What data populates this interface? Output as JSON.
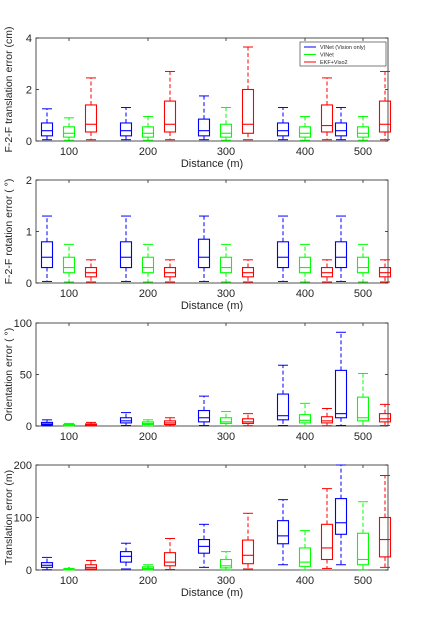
{
  "colors": {
    "vinet_vision": "#0000ff",
    "vinet": "#00ff00",
    "ekf": "#ff0000",
    "axis": "#262626"
  },
  "legend": {
    "placement": "top-right",
    "entries": [
      "VINet (Vision only)",
      "VINet",
      "EKF+Viso2"
    ]
  },
  "chart_data": [
    {
      "type": "box",
      "ylabel": "F-2-F translation error (cm)",
      "xlabel": "Distance (m)",
      "categories": [
        "100",
        "200",
        "300",
        "400",
        "500"
      ],
      "ylim": [
        0,
        4
      ],
      "yticks": [
        0,
        2,
        4
      ],
      "has_legend": true,
      "series": [
        {
          "name": "VINet (Vision only)",
          "boxes": [
            {
              "whisker_low": 0.05,
              "q1": 0.2,
              "median": 0.4,
              "q3": 0.7,
              "whisker_high": 1.25
            },
            {
              "whisker_low": 0.05,
              "q1": 0.2,
              "median": 0.4,
              "q3": 0.7,
              "whisker_high": 1.3
            },
            {
              "whisker_low": 0.05,
              "q1": 0.2,
              "median": 0.4,
              "q3": 0.85,
              "whisker_high": 1.75
            },
            {
              "whisker_low": 0.05,
              "q1": 0.2,
              "median": 0.4,
              "q3": 0.7,
              "whisker_high": 1.3
            },
            {
              "whisker_low": 0.05,
              "q1": 0.2,
              "median": 0.4,
              "q3": 0.7,
              "whisker_high": 1.3
            }
          ]
        },
        {
          "name": "VINet",
          "boxes": [
            {
              "whisker_low": 0.03,
              "q1": 0.15,
              "median": 0.3,
              "q3": 0.55,
              "whisker_high": 0.9
            },
            {
              "whisker_low": 0.03,
              "q1": 0.15,
              "median": 0.3,
              "q3": 0.55,
              "whisker_high": 0.95
            },
            {
              "whisker_low": 0.03,
              "q1": 0.15,
              "median": 0.3,
              "q3": 0.65,
              "whisker_high": 1.3
            },
            {
              "whisker_low": 0.03,
              "q1": 0.15,
              "median": 0.3,
              "q3": 0.55,
              "whisker_high": 0.95
            },
            {
              "whisker_low": 0.03,
              "q1": 0.15,
              "median": 0.3,
              "q3": 0.55,
              "whisker_high": 0.95
            }
          ]
        },
        {
          "name": "EKF+Viso2",
          "boxes": [
            {
              "whisker_low": 0.05,
              "q1": 0.35,
              "median": 0.65,
              "q3": 1.4,
              "whisker_high": 2.45
            },
            {
              "whisker_low": 0.05,
              "q1": 0.35,
              "median": 0.65,
              "q3": 1.55,
              "whisker_high": 2.7
            },
            {
              "whisker_low": 0.05,
              "q1": 0.3,
              "median": 0.65,
              "q3": 2.0,
              "whisker_high": 3.65
            },
            {
              "whisker_low": 0.05,
              "q1": 0.35,
              "median": 0.6,
              "q3": 1.4,
              "whisker_high": 2.45
            },
            {
              "whisker_low": 0.05,
              "q1": 0.35,
              "median": 0.65,
              "q3": 1.55,
              "whisker_high": 2.7
            }
          ]
        }
      ]
    },
    {
      "type": "box",
      "ylabel": "F-2-F rotation error ( °)",
      "xlabel": "Distance (m)",
      "categories": [
        "100",
        "200",
        "300",
        "400",
        "500"
      ],
      "ylim": [
        0,
        2
      ],
      "yticks": [
        0,
        1,
        2
      ],
      "has_legend": false,
      "series": [
        {
          "name": "VINet (Vision only)",
          "boxes": [
            {
              "whisker_low": 0.03,
              "q1": 0.3,
              "median": 0.5,
              "q3": 0.8,
              "whisker_high": 1.3
            },
            {
              "whisker_low": 0.03,
              "q1": 0.3,
              "median": 0.5,
              "q3": 0.8,
              "whisker_high": 1.3
            },
            {
              "whisker_low": 0.03,
              "q1": 0.3,
              "median": 0.5,
              "q3": 0.85,
              "whisker_high": 1.3
            },
            {
              "whisker_low": 0.03,
              "q1": 0.3,
              "median": 0.5,
              "q3": 0.8,
              "whisker_high": 1.3
            },
            {
              "whisker_low": 0.03,
              "q1": 0.3,
              "median": 0.5,
              "q3": 0.8,
              "whisker_high": 1.3
            }
          ]
        },
        {
          "name": "VINet",
          "boxes": [
            {
              "whisker_low": 0.02,
              "q1": 0.2,
              "median": 0.3,
              "q3": 0.5,
              "whisker_high": 0.75
            },
            {
              "whisker_low": 0.02,
              "q1": 0.2,
              "median": 0.3,
              "q3": 0.5,
              "whisker_high": 0.75
            },
            {
              "whisker_low": 0.02,
              "q1": 0.2,
              "median": 0.3,
              "q3": 0.5,
              "whisker_high": 0.75
            },
            {
              "whisker_low": 0.02,
              "q1": 0.2,
              "median": 0.3,
              "q3": 0.5,
              "whisker_high": 0.75
            },
            {
              "whisker_low": 0.02,
              "q1": 0.2,
              "median": 0.3,
              "q3": 0.5,
              "whisker_high": 0.75
            }
          ]
        },
        {
          "name": "EKF+Viso2",
          "boxes": [
            {
              "whisker_low": 0.02,
              "q1": 0.12,
              "median": 0.2,
              "q3": 0.3,
              "whisker_high": 0.45
            },
            {
              "whisker_low": 0.02,
              "q1": 0.12,
              "median": 0.2,
              "q3": 0.3,
              "whisker_high": 0.45
            },
            {
              "whisker_low": 0.02,
              "q1": 0.12,
              "median": 0.2,
              "q3": 0.3,
              "whisker_high": 0.45
            },
            {
              "whisker_low": 0.02,
              "q1": 0.12,
              "median": 0.2,
              "q3": 0.3,
              "whisker_high": 0.45
            },
            {
              "whisker_low": 0.02,
              "q1": 0.12,
              "median": 0.2,
              "q3": 0.3,
              "whisker_high": 0.45
            }
          ]
        }
      ]
    },
    {
      "type": "box",
      "ylabel": "Orientation error ( °)",
      "xlabel": "",
      "categories": [
        "100",
        "200",
        "300",
        "400",
        "500"
      ],
      "ylim": [
        0,
        100
      ],
      "yticks": [
        0,
        50,
        100
      ],
      "has_legend": false,
      "series": [
        {
          "name": "VINet (Vision only)",
          "boxes": [
            {
              "whisker_low": 0.2,
              "q1": 1.0,
              "median": 2.0,
              "q3": 3.5,
              "whisker_high": 6
            },
            {
              "whisker_low": 0.5,
              "q1": 3.0,
              "median": 5.0,
              "q3": 8.0,
              "whisker_high": 13
            },
            {
              "whisker_low": 0.5,
              "q1": 4.0,
              "median": 8.0,
              "q3": 15.0,
              "whisker_high": 29
            },
            {
              "whisker_low": 0.5,
              "q1": 6.0,
              "median": 10.0,
              "q3": 31.0,
              "whisker_high": 59
            },
            {
              "whisker_low": 0.5,
              "q1": 8.0,
              "median": 12.0,
              "q3": 54.0,
              "whisker_high": 91
            }
          ]
        },
        {
          "name": "VINet",
          "boxes": [
            {
              "whisker_low": 0.1,
              "q1": 0.5,
              "median": 1.0,
              "q3": 1.5,
              "whisker_high": 2.5
            },
            {
              "whisker_low": 0.2,
              "q1": 1.5,
              "median": 2.5,
              "q3": 4.0,
              "whisker_high": 6
            },
            {
              "whisker_low": 0.3,
              "q1": 2.5,
              "median": 4.0,
              "q3": 8.0,
              "whisker_high": 14
            },
            {
              "whisker_low": 0.3,
              "q1": 3.0,
              "median": 5.5,
              "q3": 11.0,
              "whisker_high": 22
            },
            {
              "whisker_low": 0.5,
              "q1": 5.0,
              "median": 8.0,
              "q3": 28.0,
              "whisker_high": 51
            }
          ]
        },
        {
          "name": "EKF+Viso2",
          "boxes": [
            {
              "whisker_low": 0.1,
              "q1": 0.5,
              "median": 1.0,
              "q3": 2.0,
              "whisker_high": 3.5
            },
            {
              "whisker_low": 0.3,
              "q1": 1.5,
              "median": 3.0,
              "q3": 5.0,
              "whisker_high": 8
            },
            {
              "whisker_low": 0.3,
              "q1": 2.5,
              "median": 4.0,
              "q3": 7.0,
              "whisker_high": 12
            },
            {
              "whisker_low": 0.3,
              "q1": 3.0,
              "median": 5.0,
              "q3": 9.0,
              "whisker_high": 17
            },
            {
              "whisker_low": 0.5,
              "q1": 4.0,
              "median": 7.0,
              "q3": 12.0,
              "whisker_high": 21
            }
          ]
        }
      ]
    },
    {
      "type": "box",
      "ylabel": "Translation error (m)",
      "xlabel": "Distance (m)",
      "categories": [
        "100",
        "200",
        "300",
        "400",
        "500"
      ],
      "ylim": [
        0,
        200
      ],
      "yticks": [
        0,
        100,
        200
      ],
      "has_legend": false,
      "series": [
        {
          "name": "VINet (Vision only)",
          "boxes": [
            {
              "whisker_low": 0.5,
              "q1": 5.0,
              "median": 9.0,
              "q3": 14.0,
              "whisker_high": 24
            },
            {
              "whisker_low": 2.0,
              "q1": 15.0,
              "median": 26.0,
              "q3": 35.0,
              "whisker_high": 51
            },
            {
              "whisker_low": 5.0,
              "q1": 32.0,
              "median": 45.0,
              "q3": 58.0,
              "whisker_high": 87
            },
            {
              "whisker_low": 10.0,
              "q1": 50.0,
              "median": 65.0,
              "q3": 94.0,
              "whisker_high": 134
            },
            {
              "whisker_low": 10.0,
              "q1": 68.0,
              "median": 90.0,
              "q3": 136.0,
              "whisker_high": 200
            }
          ]
        },
        {
          "name": "VINet",
          "boxes": [
            {
              "whisker_low": 0.0,
              "q1": 0.5,
              "median": 1.0,
              "q3": 2.0,
              "whisker_high": 3
            },
            {
              "whisker_low": 0.2,
              "q1": 1.5,
              "median": 3.0,
              "q3": 6.0,
              "whisker_high": 10
            },
            {
              "whisker_low": 0.5,
              "q1": 4.0,
              "median": 8.0,
              "q3": 20.0,
              "whisker_high": 35
            },
            {
              "whisker_low": 0.5,
              "q1": 7.0,
              "median": 15.0,
              "q3": 42.0,
              "whisker_high": 75
            },
            {
              "whisker_low": 0.5,
              "q1": 10.0,
              "median": 20.0,
              "q3": 70.0,
              "whisker_high": 130
            }
          ]
        },
        {
          "name": "EKF+Viso2",
          "boxes": [
            {
              "whisker_low": 0.3,
              "q1": 2.0,
              "median": 5.0,
              "q3": 10.0,
              "whisker_high": 18
            },
            {
              "whisker_low": 1.0,
              "q1": 8.0,
              "median": 15.0,
              "q3": 33.0,
              "whisker_high": 60
            },
            {
              "whisker_low": 2.0,
              "q1": 12.0,
              "median": 28.0,
              "q3": 57.0,
              "whisker_high": 108
            },
            {
              "whisker_low": 3.0,
              "q1": 20.0,
              "median": 42.0,
              "q3": 87.0,
              "whisker_high": 155
            },
            {
              "whisker_low": 5.0,
              "q1": 25.0,
              "median": 58.0,
              "q3": 100.0,
              "whisker_high": 180
            }
          ]
        }
      ]
    }
  ]
}
